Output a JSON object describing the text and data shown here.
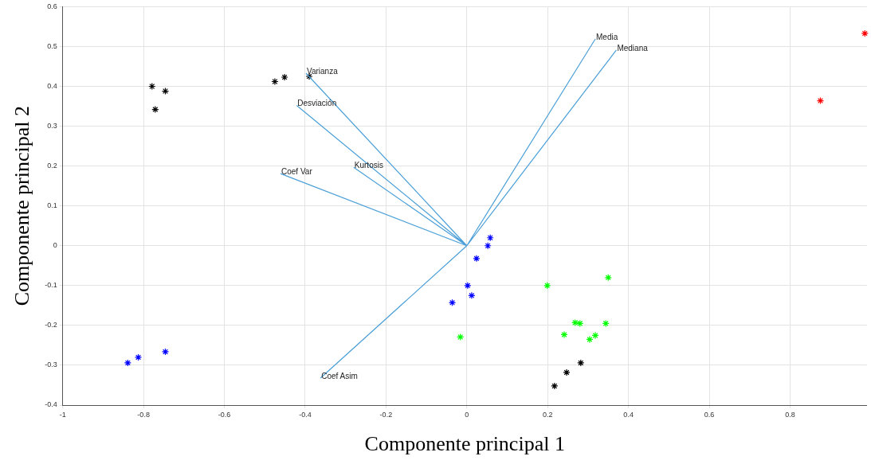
{
  "chart_data": {
    "type": "scatter",
    "xlabel": "Componente principal 1",
    "ylabel": "Componente principal 2",
    "xlim": [
      -1,
      0.99
    ],
    "ylim": [
      -0.4,
      0.6
    ],
    "xticks": [
      -1,
      -0.8,
      -0.6,
      -0.4,
      -0.2,
      0,
      0.2,
      0.4,
      0.6,
      0.8
    ],
    "yticks": [
      -0.4,
      -0.3,
      -0.2,
      -0.1,
      0,
      0.1,
      0.2,
      0.3,
      0.4,
      0.5,
      0.6
    ],
    "grid": true,
    "legend": false,
    "marker": "cross",
    "annotations": [
      {
        "text": "Media",
        "x": 0.318,
        "y": 0.519
      },
      {
        "text": "Mediana",
        "x": 0.37,
        "y": 0.491
      },
      {
        "text": "Varianza",
        "x": -0.398,
        "y": 0.433
      },
      {
        "text": "Desviación",
        "x": -0.421,
        "y": 0.352
      },
      {
        "text": "Kurtosis",
        "x": -0.28,
        "y": 0.197
      },
      {
        "text": "Coef Var",
        "x": -0.461,
        "y": 0.181
      },
      {
        "text": "Coef Asim",
        "x": -0.362,
        "y": -0.332
      }
    ],
    "series": [
      {
        "type": "line",
        "color": "#4a9fd8",
        "marker": "none",
        "x": [
          0,
          0.318,
          null,
          0,
          0.37,
          null,
          0,
          -0.398,
          null,
          0,
          -0.421,
          null,
          0,
          -0.28,
          null,
          0,
          -0.461,
          null,
          0,
          -0.362
        ],
        "values": [
          0,
          0.519,
          null,
          0,
          0.491,
          null,
          0,
          0.433,
          null,
          0,
          0.352,
          null,
          0,
          0.197,
          null,
          0,
          0.181,
          null,
          0,
          -0.332
        ]
      },
      {
        "type": "scatter",
        "color": "#000000",
        "x": [
          -0.779,
          -0.746,
          -0.771,
          -0.475,
          -0.451,
          -0.39,
          0.217,
          0.247,
          0.282
        ],
        "values": [
          0.4,
          0.388,
          0.342,
          0.412,
          0.423,
          0.425,
          -0.352,
          -0.318,
          -0.294
        ]
      },
      {
        "type": "scatter",
        "color": "#0000ff",
        "x": [
          -0.839,
          -0.813,
          -0.746,
          0.058,
          0.052,
          0.024,
          0.002,
          0.012,
          -0.036
        ],
        "values": [
          -0.294,
          -0.28,
          -0.266,
          0.02,
          0.0,
          -0.032,
          -0.1,
          -0.125,
          -0.143
        ]
      },
      {
        "type": "scatter",
        "color": "#00ff00",
        "x": [
          0.199,
          0.35,
          -0.016,
          0.241,
          0.268,
          0.28,
          0.344,
          0.318,
          0.304
        ],
        "values": [
          -0.1,
          -0.08,
          -0.229,
          -0.223,
          -0.193,
          -0.195,
          -0.195,
          -0.225,
          -0.235
        ]
      },
      {
        "type": "scatter",
        "color": "#ff0000",
        "x": [
          0.875,
          0.985
        ],
        "values": [
          0.364,
          0.533
        ]
      }
    ]
  }
}
